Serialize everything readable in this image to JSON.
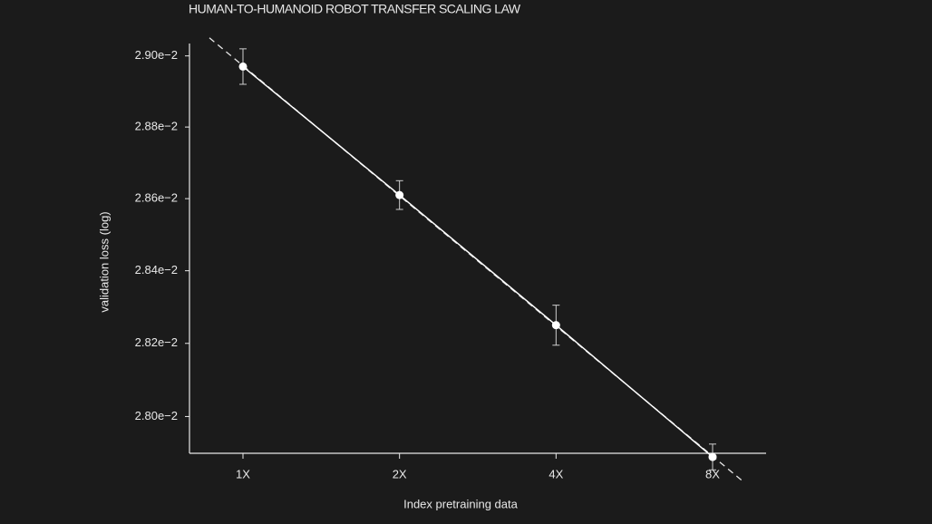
{
  "chart_data": {
    "type": "line",
    "title": "HUMAN-TO-HUMANOID ROBOT TRANSFER SCALING LAW",
    "x_label": "Index pretraining data",
    "y_label": "validation loss (log)",
    "categories": [
      "1X",
      "2X",
      "4X",
      "8X"
    ],
    "values": [
      0.02897,
      0.02861,
      0.02825,
      0.02789
    ],
    "errors": [
      5e-05,
      4e-05,
      5.5e-05,
      3.5e-05
    ],
    "color": "#ffffff",
    "log_scale": true,
    "grid": true,
    "fit_line": "dashed",
    "ylim": [
      0.0279,
      0.029035
    ],
    "yticks": [
      {
        "value": 0.028,
        "label": "2.80e−2"
      },
      {
        "value": 0.0282,
        "label": "2.82e−2"
      },
      {
        "value": 0.0284,
        "label": "2.84e−2"
      },
      {
        "value": 0.0286,
        "label": "2.86e−2"
      },
      {
        "value": 0.0288,
        "label": "2.88e−2"
      },
      {
        "value": 0.029,
        "label": "2.90e−2"
      }
    ]
  }
}
